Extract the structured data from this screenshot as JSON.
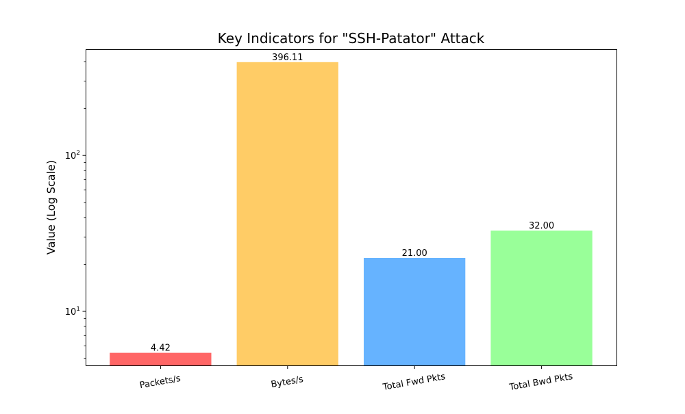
{
  "chart_data": {
    "type": "bar",
    "title": "Key Indicators for \"SSH-Patator\" Attack",
    "xlabel": "",
    "ylabel": "Value (Log Scale)",
    "yscale": "log",
    "ylim": [
      4.5,
      480
    ],
    "grid": false,
    "categories": [
      "Packets/s",
      "Bytes/s",
      "Total Fwd Pkts",
      "Total Bwd Pkts"
    ],
    "values": [
      5.42,
      397.11,
      22.0,
      33.0
    ],
    "data_labels": [
      "4.42",
      "396.11",
      "21.00",
      "32.00"
    ],
    "colors": [
      "#ff6666",
      "#ffcc66",
      "#66b3ff",
      "#99ff99"
    ],
    "y_major_ticks": [
      {
        "value": 10,
        "base": "10",
        "exp": "1"
      },
      {
        "value": 100,
        "base": "10",
        "exp": "2"
      }
    ]
  }
}
